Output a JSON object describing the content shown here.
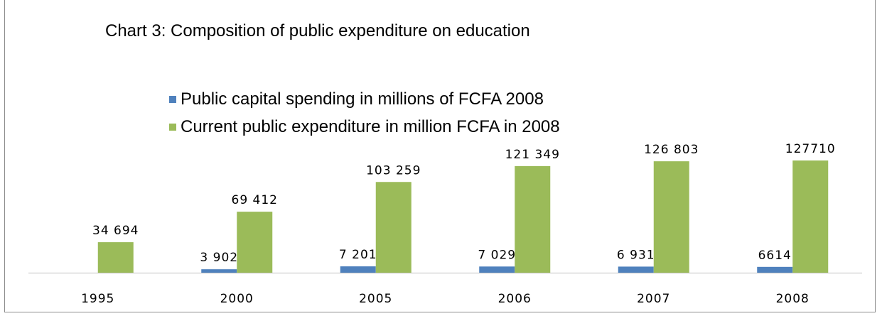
{
  "chart_data": {
    "type": "bar",
    "title": "Chart 3: Composition of public expenditure on education",
    "categories": [
      "1995",
      "2000",
      "2005",
      "2006",
      "2007",
      "2008"
    ],
    "series": [
      {
        "name": "Public capital spending in millions of FCFA 2008",
        "values": [
          null,
          3902,
          7201,
          7029,
          6931,
          6614
        ],
        "labels": [
          "",
          "3 902",
          "7 201",
          "7 029",
          "6 931",
          "6614"
        ],
        "color": "#4f81bd"
      },
      {
        "name": "Current public expenditure in million FCFA in 2008",
        "values": [
          34694,
          69412,
          103259,
          121349,
          126803,
          127710
        ],
        "labels": [
          "34 694",
          "69 412",
          "103 259",
          "121 349",
          "126 803",
          "127710"
        ],
        "color": "#9bbb59"
      }
    ],
    "ylim": [
      0,
      150000
    ],
    "legend_position": "top",
    "grid": false,
    "xlabel": "",
    "ylabel": ""
  }
}
